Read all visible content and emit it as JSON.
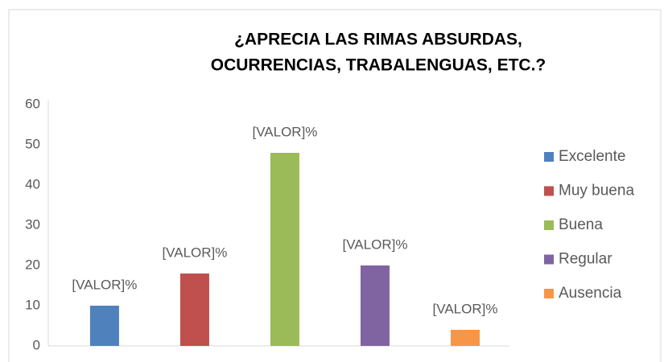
{
  "chart_data": {
    "type": "bar",
    "title": [
      "¿APRECIA LAS RIMAS ABSURDAS,",
      "OCURRENCIAS, TRABALENGUAS, ETC.?"
    ],
    "categories": [
      null
    ],
    "series": [
      {
        "name": "Excelente",
        "color": "#4f81bd",
        "values": [
          10
        ],
        "value_labels": [
          "[VALOR]%"
        ]
      },
      {
        "name": "Muy buena",
        "color": "#c0504d",
        "values": [
          18
        ],
        "value_labels": [
          "[VALOR]%"
        ]
      },
      {
        "name": "Buena",
        "color": "#9bbb59",
        "values": [
          48
        ],
        "value_labels": [
          "[VALOR]%"
        ]
      },
      {
        "name": "Regular",
        "color": "#8064a2",
        "values": [
          20
        ],
        "value_labels": [
          "[VALOR]%"
        ]
      },
      {
        "name": "Ausencia",
        "color": "#f79646",
        "values": [
          4
        ],
        "value_labels": [
          "[VALOR]%"
        ]
      }
    ],
    "ylim": [
      0,
      60
    ],
    "yticks": [
      0,
      10,
      20,
      30,
      40,
      50,
      60
    ],
    "grid": false,
    "legend": "right"
  }
}
